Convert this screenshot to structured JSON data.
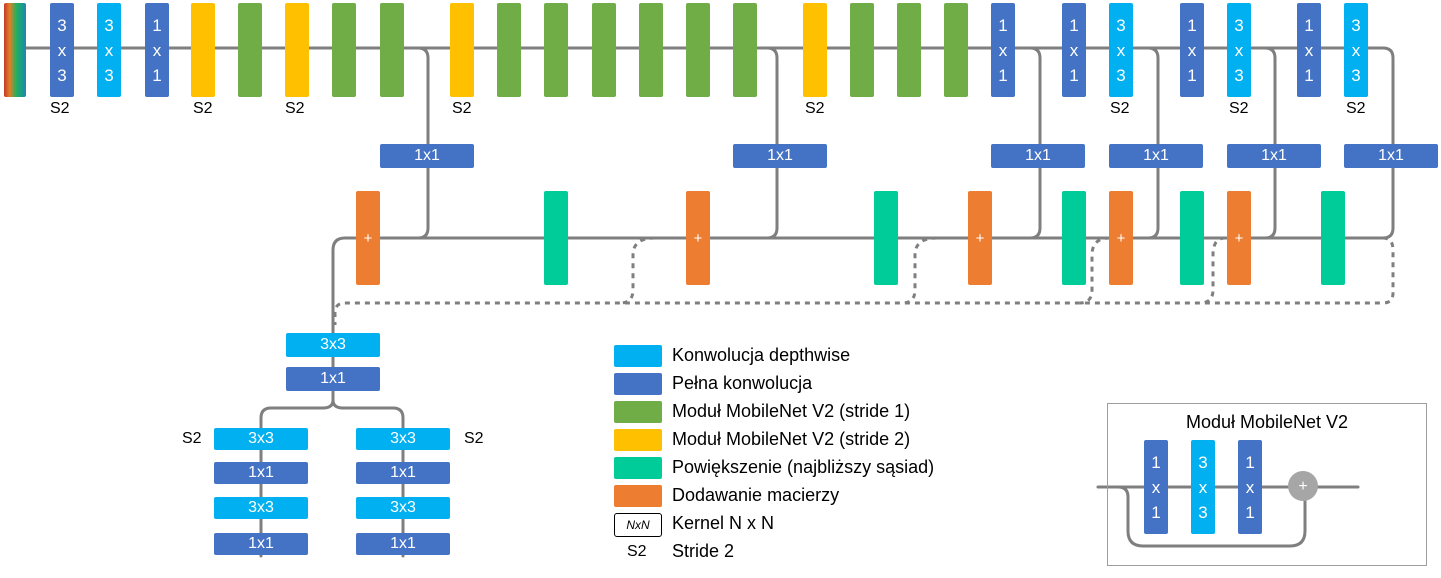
{
  "stride_label": "S2",
  "conv_labels": {
    "k3": "3\nx\n3",
    "k1": "1\nx\n1",
    "h1x1": "1x1",
    "h3x3": "3x3",
    "plus": "+"
  },
  "legend": {
    "items": [
      {
        "key": "depthwise",
        "label": "Konwolucja depthwise",
        "color": "#00b0f0"
      },
      {
        "key": "full",
        "label": "Pełna konwolucja",
        "color": "#4472c4"
      },
      {
        "key": "mnv2_s1",
        "label": "Moduł MobileNet V2 (stride 1)",
        "color": "#70ad47"
      },
      {
        "key": "mnv2_s2",
        "label": "Moduł MobileNet V2 (stride 2)",
        "color": "#ffc000"
      },
      {
        "key": "upsample",
        "label": "Powiększenie (najbliższy sąsiad)",
        "color": "#00cc99"
      },
      {
        "key": "add",
        "label": "Dodawanie macierzy",
        "color": "#ed7d31"
      }
    ],
    "kernel_box": "NxN",
    "kernel_label": "Kernel N x N",
    "stride_key": "S2",
    "stride_text": "Stride 2"
  },
  "inset": {
    "title": "Moduł MobileNet V2"
  }
}
